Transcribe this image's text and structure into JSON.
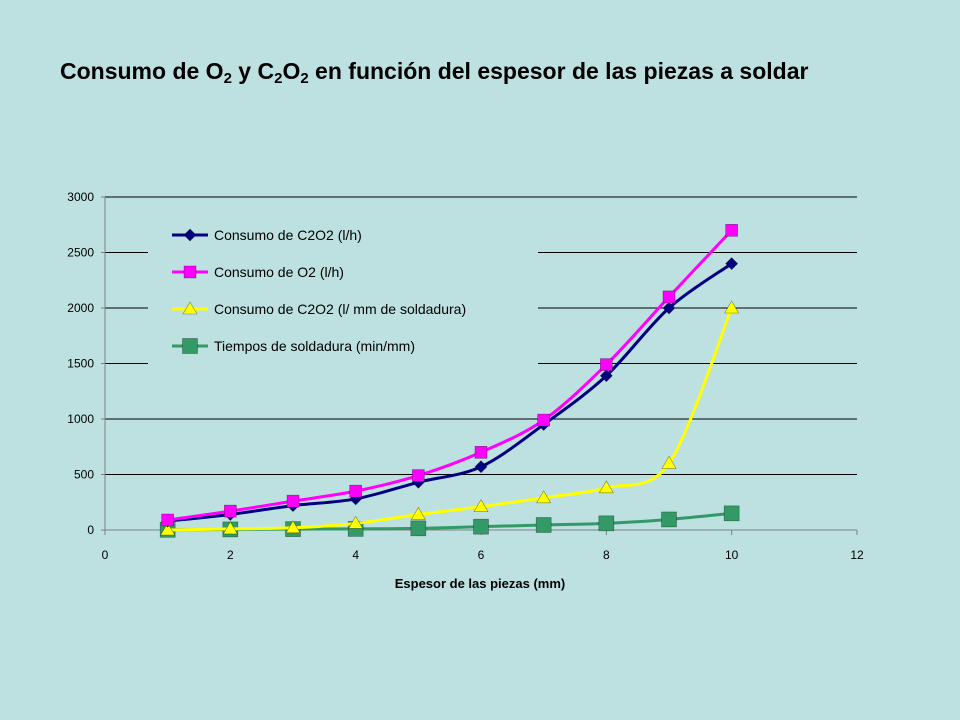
{
  "title": {
    "parts": [
      {
        "t": "Consumo de O"
      },
      {
        "t": "2",
        "sub": true
      },
      {
        "t": " y C"
      },
      {
        "t": "2",
        "sub": true
      },
      {
        "t": "O"
      },
      {
        "t": "2",
        "sub": true
      },
      {
        "t": " en función del espesor de las piezas a soldar"
      }
    ]
  },
  "colors": {
    "background": "#bde0e0",
    "gridline": "#000000",
    "axis": "#808080"
  },
  "chart_data": {
    "type": "line",
    "title": "",
    "xlabel": "Espesor de las piezas (mm)",
    "ylabel": "",
    "xlim": [
      0,
      12
    ],
    "ylim": [
      0,
      3000
    ],
    "xticks": [
      0,
      2,
      4,
      6,
      8,
      10,
      12
    ],
    "yticks": [
      0,
      500,
      1000,
      1500,
      2000,
      2500,
      3000
    ],
    "grid": "horizontal",
    "legend_position": "top-left",
    "series": [
      {
        "name": "Consumo de C2O2 (l/h)",
        "color": "#000080",
        "marker": "diamond",
        "x": [
          1,
          2,
          3,
          4,
          5,
          6,
          7,
          8,
          9,
          10
        ],
        "y": [
          80,
          140,
          220,
          280,
          430,
          570,
          950,
          1390,
          2000,
          2400
        ]
      },
      {
        "name": "Consumo de O2 (l/h)",
        "color": "#ff00ff",
        "marker": "square",
        "x": [
          1,
          2,
          3,
          4,
          5,
          6,
          7,
          8,
          9,
          10
        ],
        "y": [
          90,
          170,
          260,
          350,
          490,
          700,
          990,
          1490,
          2100,
          2700
        ]
      },
      {
        "name": "Consumo de C2O2 (l/ mm de soldadura)",
        "color": "#ffff00",
        "marker": "triangle",
        "x": [
          1,
          2,
          3,
          4,
          5,
          6,
          7,
          8,
          9,
          10
        ],
        "y": [
          0,
          10,
          20,
          60,
          140,
          210,
          290,
          380,
          600,
          2000
        ]
      },
      {
        "name": "Tiempos de soldadura (min/mm)",
        "color": "#339966",
        "marker": "square-large",
        "x": [
          1,
          2,
          3,
          4,
          5,
          6,
          7,
          8,
          9,
          10
        ],
        "y": [
          2,
          5,
          8,
          10,
          15,
          30,
          45,
          60,
          95,
          150
        ]
      }
    ]
  }
}
